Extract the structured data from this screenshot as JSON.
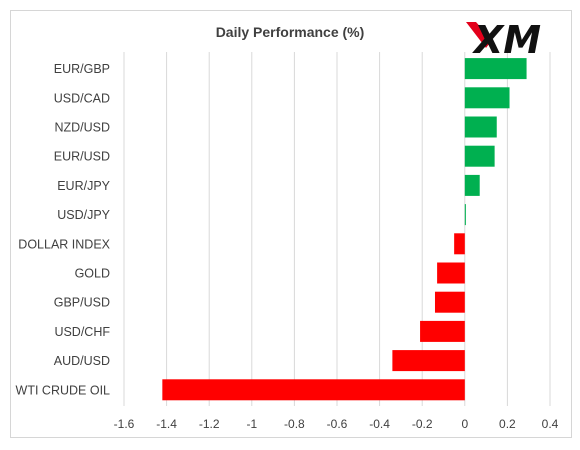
{
  "logo": {
    "text": "XM"
  },
  "chart_data": {
    "type": "bar",
    "orientation": "horizontal",
    "title": "Daily Performance (%)",
    "xlabel": "",
    "ylabel": "",
    "xlim": [
      -1.6,
      0.4
    ],
    "x_ticks": [
      -1.6,
      -1.4,
      -1.2,
      -1,
      -0.8,
      -0.6,
      -0.4,
      -0.2,
      0,
      0.2,
      0.4
    ],
    "grid": true,
    "categories": [
      "EUR/GBP",
      "USD/CAD",
      "NZD/USD",
      "EUR/USD",
      "EUR/JPY",
      "USD/JPY",
      "DOLLAR INDEX",
      "GOLD",
      "GBP/USD",
      "USD/CHF",
      "AUD/USD",
      "WTI CRUDE OIL"
    ],
    "values": [
      0.29,
      0.21,
      0.15,
      0.14,
      0.07,
      0.005,
      -0.05,
      -0.13,
      -0.14,
      -0.21,
      -0.34,
      -1.42
    ],
    "colors": {
      "positive": "#00b050",
      "negative": "#ff0000",
      "logo_accent": "#e3001b"
    }
  }
}
